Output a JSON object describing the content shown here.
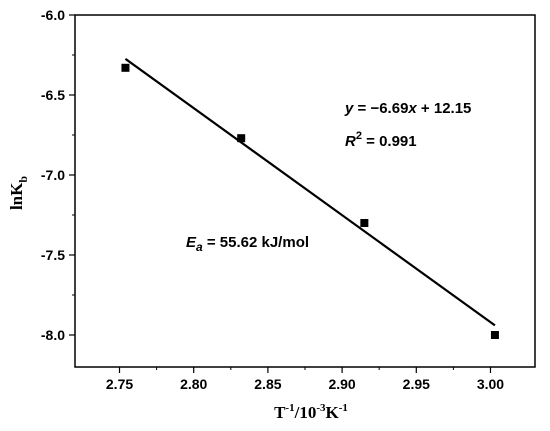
{
  "chart_data": {
    "type": "scatter",
    "xlabel": {
      "base": "T",
      "sup1": "-1",
      "mid": "/10",
      "sup2": "-3",
      "unit": "K",
      "sup3": "-1"
    },
    "ylabel": {
      "base": "lnK",
      "sub": "b"
    },
    "xlim": [
      2.72,
      3.03
    ],
    "ylim": [
      -8.2,
      -6.0
    ],
    "xticks": [
      2.75,
      2.8,
      2.85,
      2.9,
      2.95,
      3.0
    ],
    "xtick_labels": [
      "2.75",
      "2.80",
      "2.85",
      "2.90",
      "2.95",
      "3.00"
    ],
    "yticks": [
      -8.0,
      -7.5,
      -7.0,
      -6.5,
      -6.0
    ],
    "ytick_labels": [
      "-8.0",
      "-7.5",
      "-7.0",
      "-6.5",
      "-6.0"
    ],
    "points": [
      {
        "x": 2.754,
        "y": -6.33
      },
      {
        "x": 2.832,
        "y": -6.77
      },
      {
        "x": 2.915,
        "y": -7.3
      },
      {
        "x": 3.003,
        "y": -8.0
      }
    ],
    "fit_line": {
      "slope": -6.69,
      "intercept": 12.15,
      "x_range": [
        2.754,
        3.003
      ]
    },
    "annotations": {
      "equation": {
        "y": "y",
        "eq": " = ",
        "minus": "−",
        "slope": "6.69",
        "x": "x",
        "rest": " + 12.15"
      },
      "r2": {
        "r": "R",
        "exp": "2",
        "rest": " = 0.991"
      },
      "ea": {
        "e": "E",
        "sub": "a",
        "rest": " = 55.62 kJ/mol"
      }
    },
    "grid": false,
    "legend": false
  }
}
